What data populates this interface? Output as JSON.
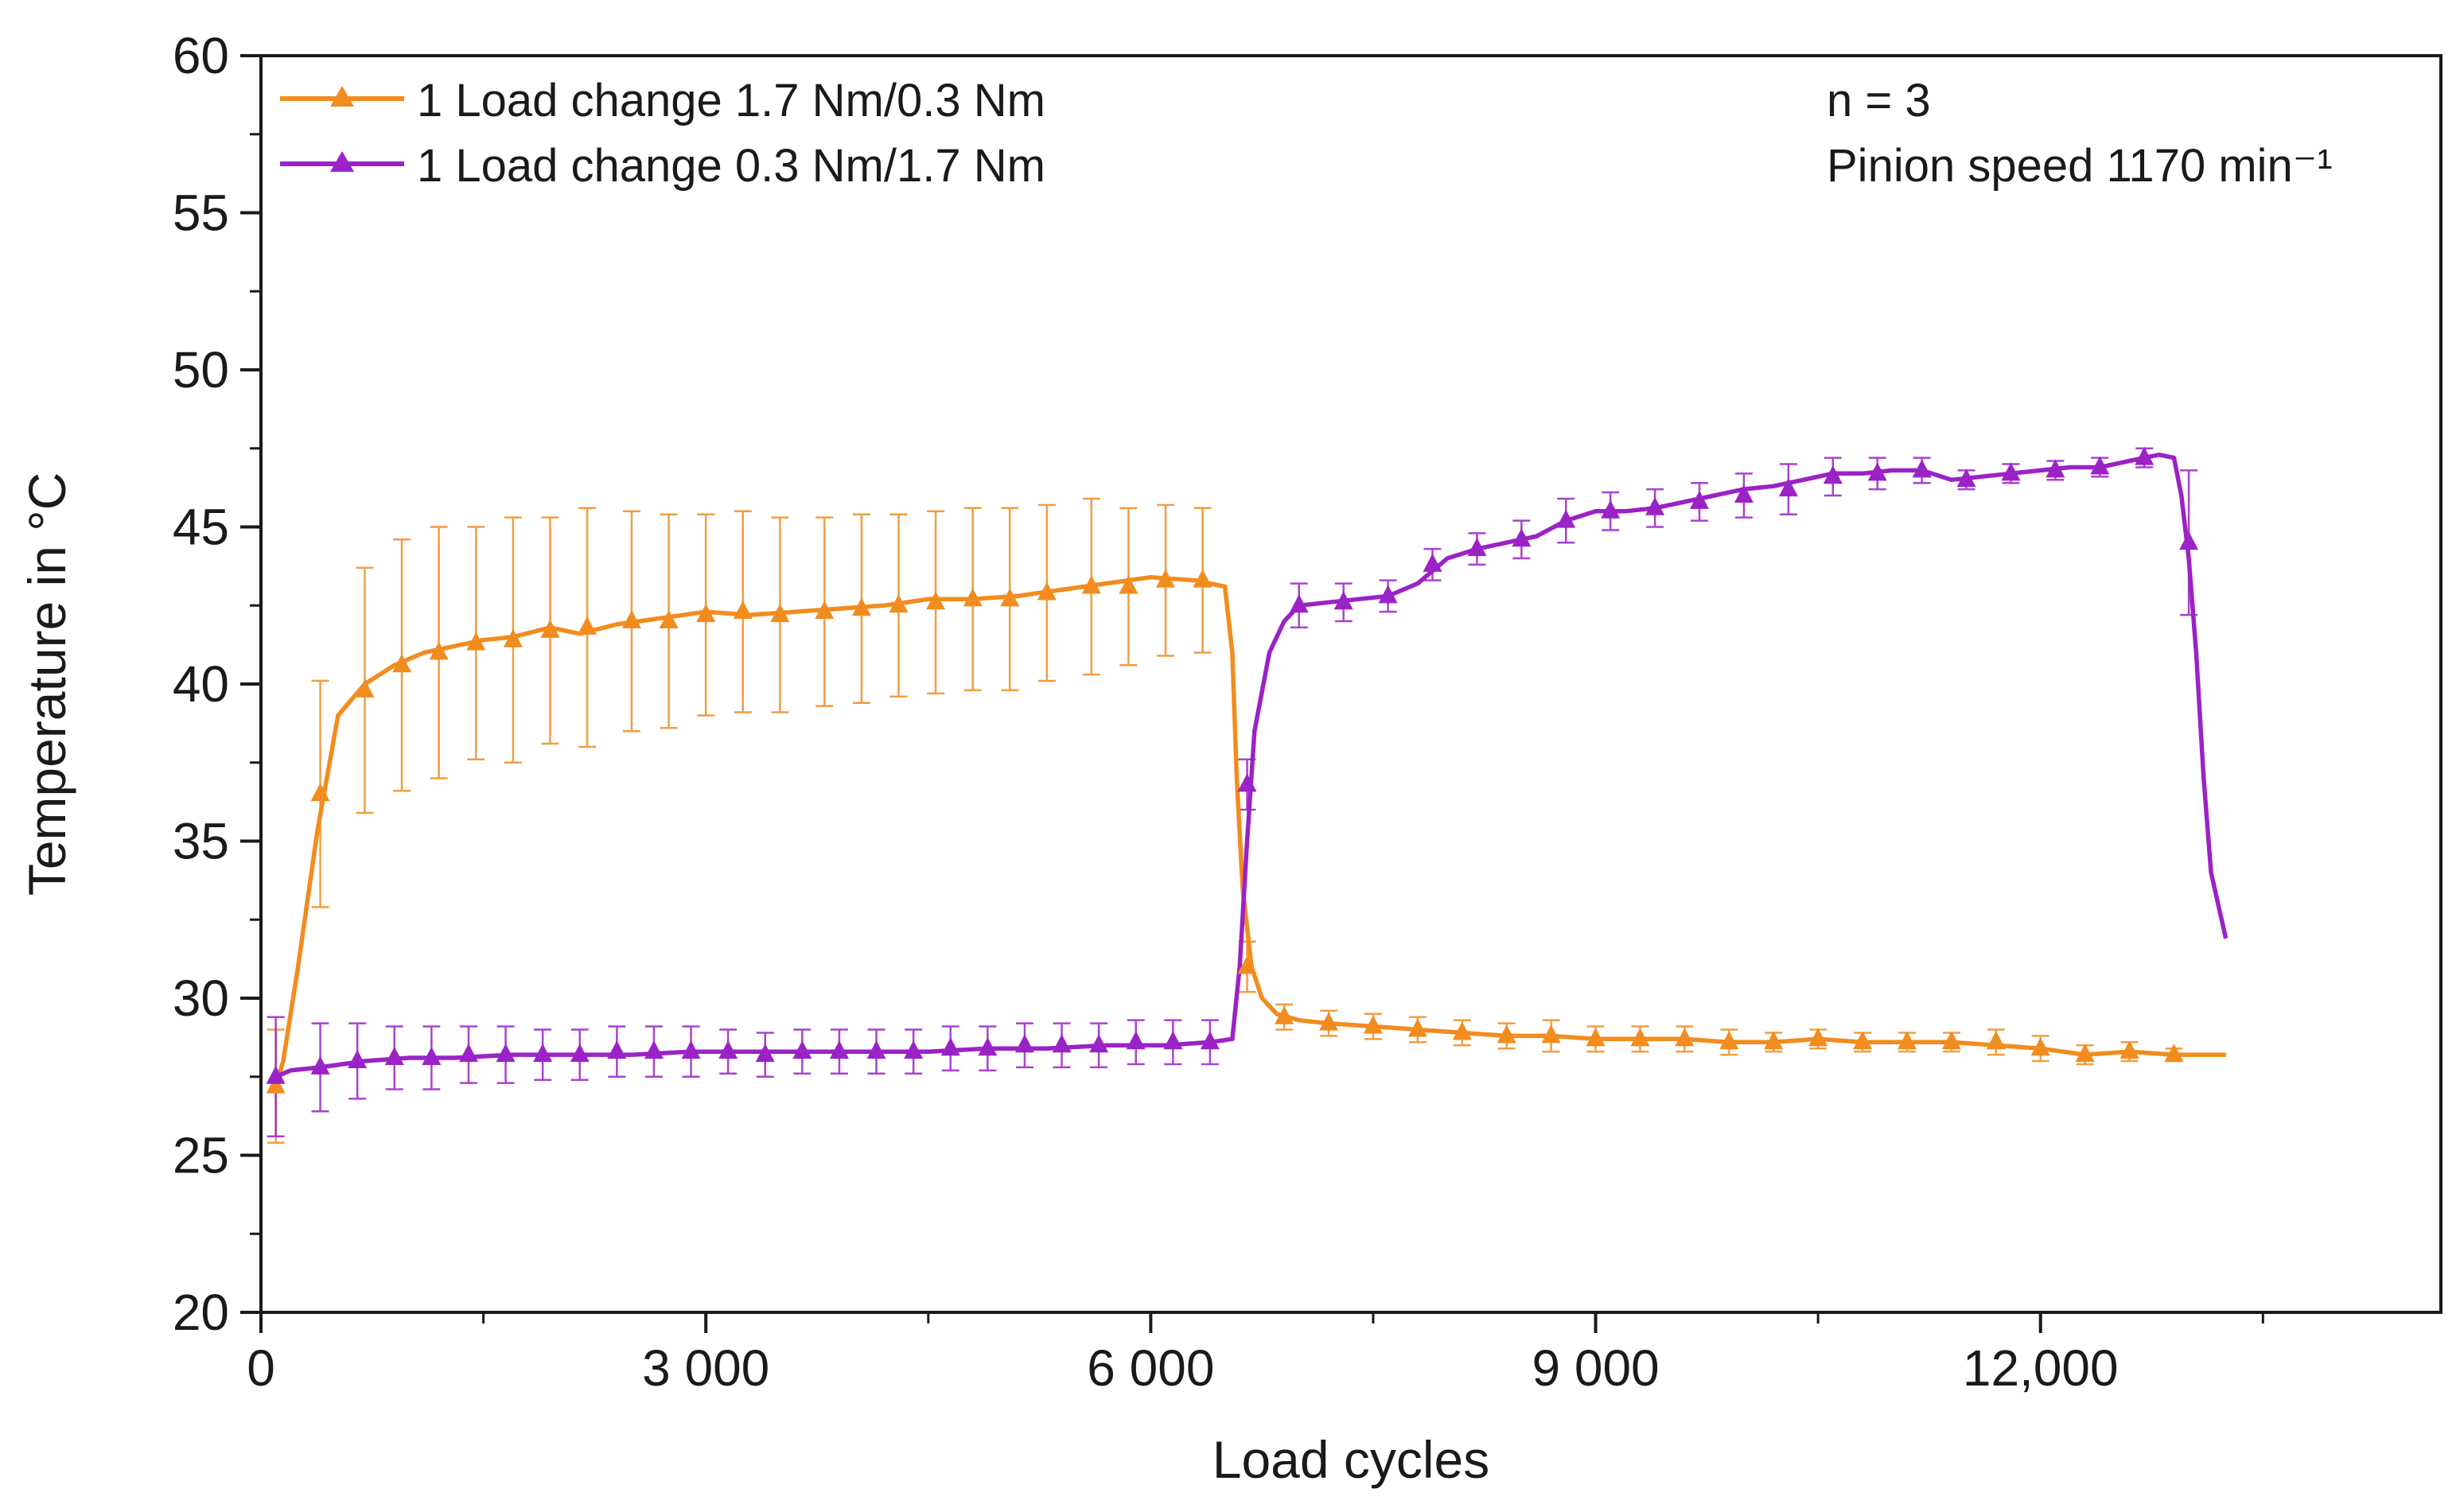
{
  "chart_data": {
    "type": "line",
    "title": "",
    "xlabel": "Load cycles",
    "ylabel": "Temperature in °C",
    "xlim": [
      0,
      14700
    ],
    "ylim": [
      20,
      60
    ],
    "x_ticks": [
      0,
      3000,
      6000,
      9000,
      12000
    ],
    "x_tick_labels": [
      "0",
      "3 000",
      "6 000",
      "9 000",
      "12,000"
    ],
    "y_ticks": [
      20,
      25,
      30,
      35,
      40,
      45,
      50,
      55,
      60
    ],
    "y_tick_labels": [
      "20",
      "25",
      "30",
      "35",
      "40",
      "45",
      "50",
      "55",
      "60"
    ],
    "grid": false,
    "legend_position": "top-left",
    "annotations": [
      "n = 3",
      "Pinion speed 1170 min⁻¹"
    ],
    "series": [
      {
        "name": "1 Load change 1.7 Nm/0.3 Nm",
        "color": "#f28c1e",
        "marker": "triangle",
        "x": [
          100,
          150,
          250,
          380,
          520,
          700,
          900,
          1100,
          1300,
          1500,
          1700,
          1950,
          2150,
          2400,
          2700,
          3000,
          3300,
          3600,
          3900,
          4200,
          4500,
          4800,
          5100,
          5400,
          5700,
          6000,
          6300,
          6500,
          6550,
          6580,
          6620,
          6680,
          6750,
          6850,
          7000,
          7200,
          7500,
          7800,
          8100,
          8400,
          8700,
          9000,
          9300,
          9600,
          9900,
          10200,
          10500,
          10800,
          11100,
          11400,
          11700,
          12000,
          12300,
          12600,
          12900,
          13250
        ],
        "y": [
          27.2,
          28.0,
          31.0,
          35.3,
          39.0,
          40.0,
          40.6,
          41.0,
          41.2,
          41.4,
          41.5,
          41.8,
          41.6,
          41.9,
          42.1,
          42.3,
          42.2,
          42.3,
          42.4,
          42.5,
          42.7,
          42.7,
          42.8,
          43.0,
          43.2,
          43.4,
          43.3,
          43.1,
          41.0,
          37.0,
          33.5,
          31.0,
          30.0,
          29.5,
          29.3,
          29.2,
          29.1,
          29.0,
          28.9,
          28.8,
          28.8,
          28.7,
          28.7,
          28.7,
          28.6,
          28.6,
          28.7,
          28.6,
          28.6,
          28.6,
          28.5,
          28.4,
          28.2,
          28.3,
          28.2,
          28.2
        ],
        "error_x": [
          100,
          400,
          700,
          950,
          1200,
          1450,
          1700,
          1950,
          2200,
          2500,
          2750,
          3000,
          3250,
          3500,
          3800,
          4050,
          4300,
          4550,
          4800,
          5050,
          5300,
          5600,
          5850,
          6100,
          6350,
          6650,
          6900,
          7200,
          7500,
          7800,
          8100,
          8400,
          8700,
          9000,
          9300,
          9600,
          9900,
          10200,
          10500,
          10800,
          11100,
          11400,
          11700,
          12000,
          12300,
          12600,
          12900
        ],
        "error_y": [
          27.2,
          36.5,
          39.8,
          40.6,
          41.0,
          41.3,
          41.4,
          41.7,
          41.8,
          42.0,
          42.0,
          42.2,
          42.3,
          42.2,
          42.3,
          42.4,
          42.5,
          42.6,
          42.7,
          42.7,
          42.9,
          43.1,
          43.1,
          43.3,
          43.3,
          31.0,
          29.4,
          29.2,
          29.1,
          29.0,
          28.9,
          28.8,
          28.8,
          28.7,
          28.7,
          28.7,
          28.6,
          28.6,
          28.7,
          28.6,
          28.6,
          28.6,
          28.6,
          28.4,
          28.2,
          28.3,
          28.2
        ],
        "error_half": [
          1.8,
          3.6,
          3.9,
          4.0,
          4.0,
          3.7,
          3.9,
          3.6,
          3.8,
          3.5,
          3.4,
          3.2,
          3.2,
          3.1,
          3.0,
          3.0,
          2.9,
          2.9,
          2.9,
          2.9,
          2.8,
          2.8,
          2.5,
          2.4,
          2.3,
          0.8,
          0.4,
          0.4,
          0.4,
          0.4,
          0.4,
          0.4,
          0.5,
          0.4,
          0.4,
          0.4,
          0.4,
          0.3,
          0.3,
          0.3,
          0.3,
          0.3,
          0.4,
          0.4,
          0.3,
          0.3,
          0.2
        ]
      },
      {
        "name": "1 Load change 0.3 Nm/1.7 Nm",
        "color": "#9b22c7",
        "marker": "triangle",
        "x": [
          100,
          200,
          400,
          700,
          1000,
          1300,
          1700,
          2100,
          2500,
          2900,
          3300,
          3700,
          4100,
          4500,
          4900,
          5300,
          5700,
          6100,
          6400,
          6550,
          6600,
          6650,
          6700,
          6800,
          6900,
          7000,
          7200,
          7400,
          7600,
          7800,
          8000,
          8200,
          8400,
          8600,
          8800,
          9000,
          9200,
          9400,
          9600,
          9800,
          10000,
          10200,
          10400,
          10600,
          10800,
          11000,
          11200,
          11400,
          11600,
          11800,
          12000,
          12200,
          12400,
          12600,
          12800,
          12900,
          12950,
          13000,
          13050,
          13100,
          13150,
          13250
        ],
        "y": [
          27.5,
          27.7,
          27.8,
          28.0,
          28.1,
          28.1,
          28.2,
          28.2,
          28.2,
          28.3,
          28.3,
          28.3,
          28.3,
          28.3,
          28.4,
          28.4,
          28.5,
          28.5,
          28.6,
          28.7,
          31.0,
          35.0,
          38.5,
          41.0,
          42.0,
          42.5,
          42.6,
          42.7,
          42.8,
          43.2,
          44.0,
          44.3,
          44.5,
          44.7,
          45.2,
          45.5,
          45.5,
          45.6,
          45.8,
          46.0,
          46.2,
          46.3,
          46.5,
          46.7,
          46.7,
          46.8,
          46.8,
          46.5,
          46.6,
          46.7,
          46.8,
          46.9,
          46.9,
          47.1,
          47.3,
          47.2,
          46.0,
          44.0,
          41.0,
          37.0,
          34.0,
          31.9
        ],
        "error_x": [
          100,
          400,
          650,
          900,
          1150,
          1400,
          1650,
          1900,
          2150,
          2400,
          2650,
          2900,
          3150,
          3400,
          3650,
          3900,
          4150,
          4400,
          4650,
          4900,
          5150,
          5400,
          5650,
          5900,
          6150,
          6400,
          6650,
          7000,
          7300,
          7600,
          7900,
          8200,
          8500,
          8800,
          9100,
          9400,
          9700,
          10000,
          10300,
          10600,
          10900,
          11200,
          11500,
          11800,
          12100,
          12400,
          12700,
          13000
        ],
        "error_y": [
          27.5,
          27.8,
          28.0,
          28.1,
          28.1,
          28.2,
          28.2,
          28.2,
          28.2,
          28.3,
          28.3,
          28.3,
          28.3,
          28.2,
          28.3,
          28.3,
          28.3,
          28.3,
          28.4,
          28.4,
          28.5,
          28.5,
          28.5,
          28.6,
          28.6,
          28.6,
          36.8,
          42.5,
          42.6,
          42.8,
          43.8,
          44.3,
          44.6,
          45.2,
          45.5,
          45.6,
          45.8,
          46.0,
          46.2,
          46.6,
          46.7,
          46.8,
          46.5,
          46.7,
          46.8,
          46.9,
          47.2,
          44.5
        ],
        "error_half": [
          1.9,
          1.4,
          1.2,
          1.0,
          1.0,
          0.9,
          0.9,
          0.8,
          0.8,
          0.8,
          0.8,
          0.8,
          0.7,
          0.7,
          0.7,
          0.7,
          0.7,
          0.7,
          0.7,
          0.7,
          0.7,
          0.7,
          0.7,
          0.7,
          0.7,
          0.7,
          0.8,
          0.7,
          0.6,
          0.5,
          0.5,
          0.5,
          0.6,
          0.7,
          0.6,
          0.6,
          0.6,
          0.7,
          0.8,
          0.6,
          0.5,
          0.4,
          0.3,
          0.3,
          0.3,
          0.3,
          0.3,
          2.3
        ]
      }
    ]
  }
}
